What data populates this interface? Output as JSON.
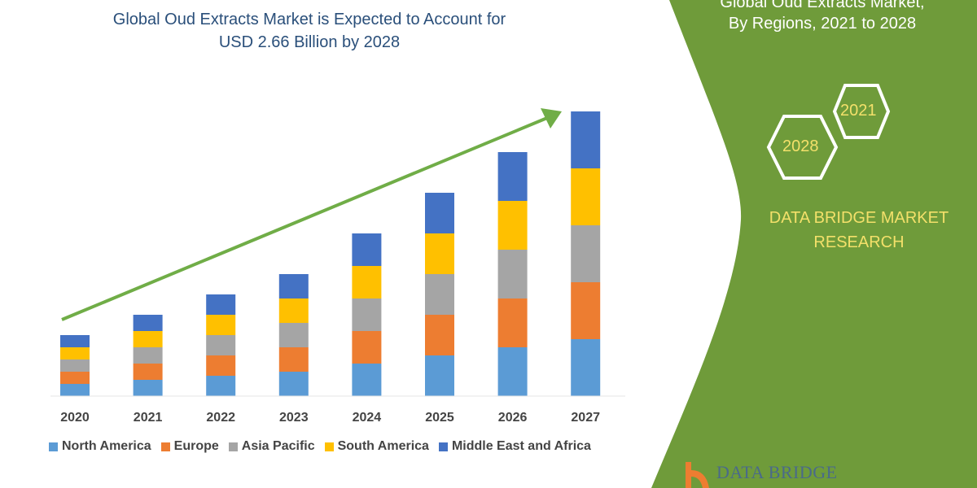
{
  "header": {
    "title_line1": "Global Oud Extracts Market is Expected to Account for",
    "title_line2": "USD 2.66 Billion by 2028"
  },
  "side_panel": {
    "title_line1": "Global Oud Extracts Market,",
    "title_line2": "By Regions, 2021 to 2028",
    "hex_1": "2021",
    "hex_2": "2028",
    "brand_line1": "DATA BRIDGE MARKET",
    "brand_line2": "RESEARCH",
    "logo_text": "DATA BRIDGE",
    "panel_color": "#6f9b3a",
    "accent_text_color": "#f3e06a"
  },
  "chart_data": {
    "type": "bar",
    "stacked": true,
    "title": "Global Oud Extracts Market is Expected to Account for USD 2.66 Billion by 2028",
    "categories": [
      "2020",
      "2021",
      "2022",
      "2023",
      "2024",
      "2025",
      "2026",
      "2027"
    ],
    "series": [
      {
        "name": "North America",
        "color": "#5b9bd5",
        "values": [
          15,
          20,
          25,
          30,
          40,
          50,
          60,
          70
        ]
      },
      {
        "name": "Europe",
        "color": "#ed7d31",
        "values": [
          15,
          20,
          25,
          30,
          40,
          50,
          60,
          70
        ]
      },
      {
        "name": "Asia Pacific",
        "color": "#a5a5a5",
        "values": [
          15,
          20,
          25,
          30,
          40,
          50,
          60,
          70
        ]
      },
      {
        "name": "South America",
        "color": "#ffc000",
        "values": [
          15,
          20,
          25,
          30,
          40,
          50,
          60,
          70
        ]
      },
      {
        "name": "Middle East and Africa",
        "color": "#4472c4",
        "values": [
          15,
          20,
          25,
          30,
          40,
          50,
          60,
          70
        ]
      }
    ],
    "y_axis_shown": false,
    "grid": false,
    "legend_placement": "bottom",
    "trend_arrow_color": "#70ad47"
  }
}
